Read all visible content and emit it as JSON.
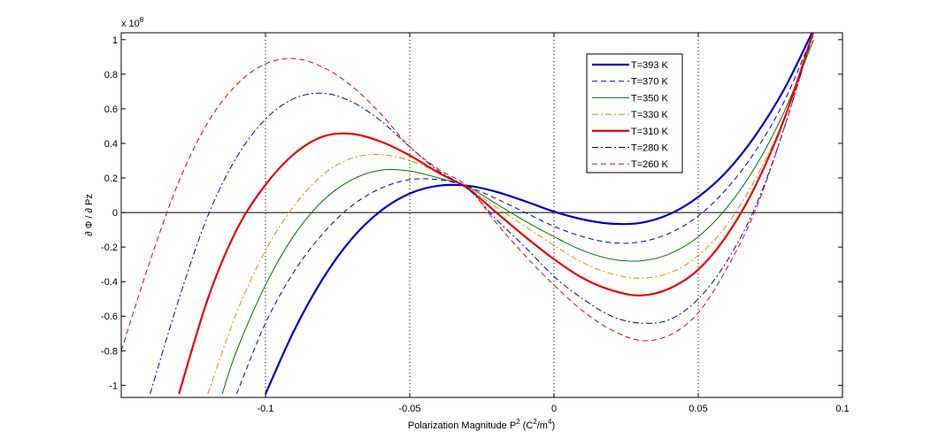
{
  "chart_data": {
    "type": "line",
    "title": "",
    "xlabel": "Polarization Magnitude   P",
    "xlabel_sup": "2",
    "xlabel_unit_open": " (C",
    "xlabel_unit_sup1": "2",
    "xlabel_unit_mid": "/m",
    "xlabel_unit_sup2": "4",
    "xlabel_unit_close": ")",
    "ylabel": "∂ Φ / ∂ Pz",
    "y_exponent_base": "x 10",
    "y_exponent_power": "8",
    "xlim": [
      -0.15,
      0.1
    ],
    "ylim": [
      -1.07,
      1.04
    ],
    "y_scale": 100000000,
    "x_ticks": [
      -0.1,
      -0.05,
      0,
      0.05,
      0.1
    ],
    "x_tick_labels": [
      "-0.1",
      "-0.05",
      "0",
      "0.05",
      "0.1"
    ],
    "y_ticks": [
      -1,
      -0.8,
      -0.6,
      -0.4,
      -0.2,
      0,
      0.2,
      0.4,
      0.6,
      0.8,
      1
    ],
    "y_tick_labels": [
      "-1",
      "-0.8",
      "-0.6",
      "-0.4",
      "-0.2",
      "0",
      "0.2",
      "0.4",
      "0.6",
      "0.8",
      "1"
    ],
    "x_grid": "dotted",
    "zero_line": true,
    "legend_position": "top-right",
    "series": [
      {
        "name": "T=393 K",
        "color": "#0000cc",
        "style": "solid",
        "weight": "bold",
        "x": [
          -0.1,
          -0.09,
          -0.08,
          -0.07,
          -0.06,
          -0.05,
          -0.04,
          -0.03,
          -0.02,
          -0.01,
          0,
          0.01,
          0.02,
          0.03,
          0.04,
          0.05,
          0.06,
          0.07,
          0.08,
          0.09
        ],
        "y": [
          -1.05,
          -0.68,
          -0.38,
          -0.15,
          0.01,
          0.11,
          0.155,
          0.155,
          0.12,
          0.065,
          0.005,
          -0.04,
          -0.065,
          -0.06,
          -0.01,
          0.09,
          0.24,
          0.45,
          0.72,
          1.06
        ]
      },
      {
        "name": "T=370 K",
        "color": "#0000cc",
        "style": "dashed",
        "weight": "normal",
        "x": [
          -0.11,
          -0.1,
          -0.09,
          -0.08,
          -0.07,
          -0.06,
          -0.05,
          -0.04,
          -0.03,
          -0.02,
          -0.01,
          0,
          0.01,
          0.02,
          0.03,
          0.04,
          0.05,
          0.06,
          0.07,
          0.08,
          0.09
        ],
        "y": [
          -1.05,
          -0.64,
          -0.34,
          -0.12,
          0.04,
          0.14,
          0.19,
          0.19,
          0.15,
          0.08,
          0,
          -0.08,
          -0.14,
          -0.175,
          -0.17,
          -0.12,
          -0.02,
          0.14,
          0.36,
          0.65,
          1.04
        ]
      },
      {
        "name": "T=350 K",
        "color": "#007700",
        "style": "solid",
        "weight": "normal",
        "x": [
          -0.115,
          -0.11,
          -0.1,
          -0.09,
          -0.08,
          -0.07,
          -0.06,
          -0.05,
          -0.04,
          -0.03,
          -0.02,
          -0.01,
          0,
          0.01,
          0.02,
          0.03,
          0.04,
          0.05,
          0.06,
          0.07,
          0.08,
          0.09
        ],
        "y": [
          -1.05,
          -0.8,
          -0.42,
          -0.13,
          0.07,
          0.19,
          0.245,
          0.24,
          0.2,
          0.15,
          0.05,
          -0.05,
          -0.14,
          -0.22,
          -0.27,
          -0.28,
          -0.24,
          -0.14,
          0.03,
          0.27,
          0.59,
          1.0
        ]
      },
      {
        "name": "T=330 K",
        "color": "#cc9900",
        "style": "dashdot",
        "weight": "normal",
        "x": [
          -0.12,
          -0.11,
          -0.1,
          -0.09,
          -0.08,
          -0.07,
          -0.06,
          -0.05,
          -0.04,
          -0.03,
          -0.02,
          -0.01,
          0,
          0.01,
          0.02,
          0.03,
          0.04,
          0.05,
          0.06,
          0.07,
          0.08,
          0.09
        ],
        "y": [
          -1.05,
          -0.58,
          -0.22,
          0.04,
          0.22,
          0.315,
          0.335,
          0.3,
          0.23,
          0.145,
          0.03,
          -0.08,
          -0.19,
          -0.29,
          -0.355,
          -0.38,
          -0.35,
          -0.25,
          -0.07,
          0.2,
          0.55,
          1.02
        ]
      },
      {
        "name": "T=310 K",
        "color": "#ee0000",
        "style": "solid",
        "weight": "bold",
        "x": [
          -0.13,
          -0.12,
          -0.11,
          -0.1,
          -0.09,
          -0.08,
          -0.07,
          -0.06,
          -0.05,
          -0.04,
          -0.03,
          -0.02,
          -0.01,
          0,
          0.01,
          0.02,
          0.03,
          0.04,
          0.05,
          0.06,
          0.07,
          0.08,
          0.09
        ],
        "y": [
          -1.05,
          -0.5,
          -0.1,
          0.16,
          0.34,
          0.44,
          0.455,
          0.41,
          0.33,
          0.23,
          0.14,
          0,
          -0.14,
          -0.27,
          -0.38,
          -0.45,
          -0.48,
          -0.44,
          -0.33,
          -0.13,
          0.16,
          0.55,
          1.05
        ]
      },
      {
        "name": "T=280 K",
        "color": "#0000cc",
        "style": "dashdot",
        "weight": "normal",
        "x": [
          -0.14,
          -0.13,
          -0.12,
          -0.11,
          -0.1,
          -0.09,
          -0.08,
          -0.07,
          -0.06,
          -0.05,
          -0.04,
          -0.03,
          -0.02,
          -0.01,
          0,
          0.01,
          0.02,
          0.03,
          0.04,
          0.05,
          0.06,
          0.07,
          0.08,
          0.09
        ],
        "y": [
          -1.05,
          -0.5,
          -0.02,
          0.32,
          0.54,
          0.66,
          0.69,
          0.64,
          0.53,
          0.38,
          0.24,
          0.14,
          -0.04,
          -0.2,
          -0.37,
          -0.5,
          -0.6,
          -0.64,
          -0.62,
          -0.5,
          -0.28,
          0.04,
          0.5,
          1.05
        ]
      },
      {
        "name": "T=260 K",
        "color": "#ee0000",
        "style": "dashed",
        "weight": "normal",
        "x": [
          -0.15,
          -0.14,
          -0.13,
          -0.12,
          -0.11,
          -0.1,
          -0.09,
          -0.08,
          -0.07,
          -0.06,
          -0.05,
          -0.04,
          -0.03,
          -0.02,
          -0.01,
          0,
          0.01,
          0.02,
          0.03,
          0.04,
          0.05,
          0.06,
          0.07,
          0.08,
          0.09
        ],
        "y": [
          -0.8,
          -0.28,
          0.18,
          0.52,
          0.74,
          0.86,
          0.89,
          0.84,
          0.73,
          0.57,
          0.38,
          0.25,
          0.15,
          -0.06,
          -0.25,
          -0.42,
          -0.57,
          -0.68,
          -0.74,
          -0.71,
          -0.58,
          -0.32,
          0.02,
          0.5,
          1.05
        ]
      }
    ]
  }
}
